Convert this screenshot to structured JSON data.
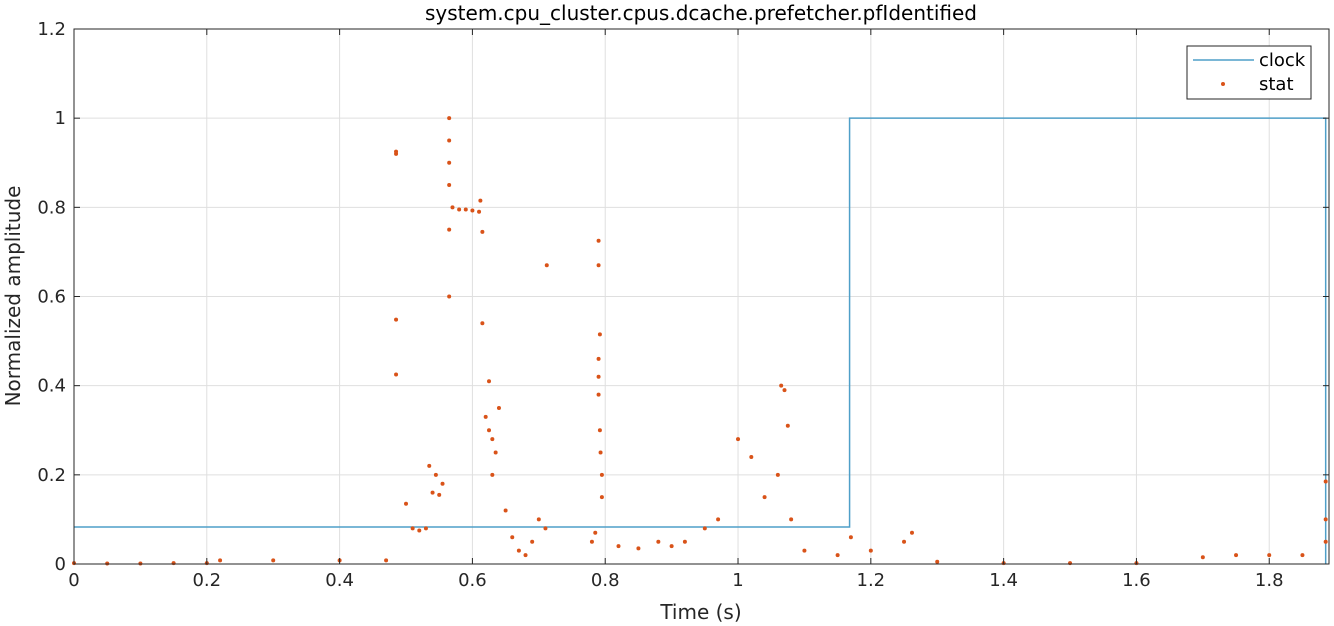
{
  "chart_data": {
    "type": "line",
    "title": "system.cpu_cluster.cpus.dcache.prefetcher.pfIdentified",
    "xlabel": "Time (s)",
    "ylabel": "Normalized amplitude",
    "xlim": [
      0,
      1.89
    ],
    "ylim": [
      0,
      1.2
    ],
    "xticks": [
      0,
      0.2,
      0.4,
      0.6,
      0.8,
      1,
      1.2,
      1.4,
      1.6,
      1.8
    ],
    "xtick_labels": [
      "0",
      "0.2",
      "0.4",
      "0.6",
      "0.8",
      "1",
      "1.2",
      "1.4",
      "1.6",
      "1.8"
    ],
    "yticks": [
      0,
      0.2,
      0.4,
      0.6,
      0.8,
      1,
      1.2
    ],
    "ytick_labels": [
      "0",
      "0.2",
      "0.4",
      "0.6",
      "0.8",
      "1",
      "1.2"
    ],
    "grid": true,
    "legend_position": "top-right",
    "series": [
      {
        "name": "clock",
        "kind": "line",
        "color": "#4f9fc8",
        "x": [
          0,
          1.168,
          1.168,
          1.885,
          1.885
        ],
        "y": [
          0.083,
          0.083,
          1.0,
          1.0,
          0
        ]
      },
      {
        "name": "stat",
        "kind": "markers",
        "color": "#d95319",
        "points": [
          [
            0.0,
            0.002
          ],
          [
            0.05,
            0.001
          ],
          [
            0.1,
            0.001
          ],
          [
            0.15,
            0.002
          ],
          [
            0.2,
            0.002
          ],
          [
            0.22,
            0.008
          ],
          [
            0.3,
            0.008
          ],
          [
            0.4,
            0.008
          ],
          [
            0.47,
            0.008
          ],
          [
            0.485,
            0.92
          ],
          [
            0.485,
            0.925
          ],
          [
            0.485,
            0.548
          ],
          [
            0.485,
            0.425
          ],
          [
            0.5,
            0.135
          ],
          [
            0.51,
            0.08
          ],
          [
            0.52,
            0.075
          ],
          [
            0.53,
            0.08
          ],
          [
            0.535,
            0.22
          ],
          [
            0.545,
            0.2
          ],
          [
            0.555,
            0.18
          ],
          [
            0.54,
            0.16
          ],
          [
            0.55,
            0.155
          ],
          [
            0.565,
            1.0
          ],
          [
            0.565,
            0.95
          ],
          [
            0.565,
            0.9
          ],
          [
            0.565,
            0.85
          ],
          [
            0.565,
            0.75
          ],
          [
            0.565,
            0.6
          ],
          [
            0.57,
            0.8
          ],
          [
            0.58,
            0.795
          ],
          [
            0.59,
            0.795
          ],
          [
            0.6,
            0.793
          ],
          [
            0.61,
            0.79
          ],
          [
            0.612,
            0.815
          ],
          [
            0.615,
            0.745
          ],
          [
            0.615,
            0.54
          ],
          [
            0.62,
            0.33
          ],
          [
            0.625,
            0.3
          ],
          [
            0.63,
            0.28
          ],
          [
            0.635,
            0.25
          ],
          [
            0.64,
            0.35
          ],
          [
            0.625,
            0.41
          ],
          [
            0.63,
            0.2
          ],
          [
            0.65,
            0.12
          ],
          [
            0.66,
            0.06
          ],
          [
            0.67,
            0.03
          ],
          [
            0.68,
            0.02
          ],
          [
            0.69,
            0.05
          ],
          [
            0.7,
            0.1
          ],
          [
            0.71,
            0.08
          ],
          [
            0.712,
            0.67
          ],
          [
            0.78,
            0.05
          ],
          [
            0.785,
            0.07
          ],
          [
            0.79,
            0.725
          ],
          [
            0.79,
            0.67
          ],
          [
            0.792,
            0.515
          ],
          [
            0.79,
            0.46
          ],
          [
            0.79,
            0.42
          ],
          [
            0.79,
            0.38
          ],
          [
            0.792,
            0.3
          ],
          [
            0.793,
            0.25
          ],
          [
            0.795,
            0.2
          ],
          [
            0.795,
            0.15
          ],
          [
            0.82,
            0.04
          ],
          [
            0.85,
            0.035
          ],
          [
            0.88,
            0.05
          ],
          [
            0.9,
            0.04
          ],
          [
            0.92,
            0.05
          ],
          [
            0.95,
            0.08
          ],
          [
            0.97,
            0.1
          ],
          [
            1.0,
            0.28
          ],
          [
            1.02,
            0.24
          ],
          [
            1.04,
            0.15
          ],
          [
            1.06,
            0.2
          ],
          [
            1.065,
            0.4
          ],
          [
            1.07,
            0.39
          ],
          [
            1.075,
            0.31
          ],
          [
            1.08,
            0.1
          ],
          [
            1.1,
            0.03
          ],
          [
            1.15,
            0.02
          ],
          [
            1.17,
            0.06
          ],
          [
            1.2,
            0.03
          ],
          [
            1.25,
            0.05
          ],
          [
            1.262,
            0.07
          ],
          [
            1.3,
            0.005
          ],
          [
            1.4,
            0.002
          ],
          [
            1.5,
            0.002
          ],
          [
            1.6,
            0.002
          ],
          [
            1.7,
            0.015
          ],
          [
            1.75,
            0.02
          ],
          [
            1.8,
            0.02
          ],
          [
            1.85,
            0.02
          ],
          [
            1.885,
            0.185
          ],
          [
            1.885,
            0.1
          ],
          [
            1.885,
            0.05
          ]
        ]
      }
    ]
  }
}
